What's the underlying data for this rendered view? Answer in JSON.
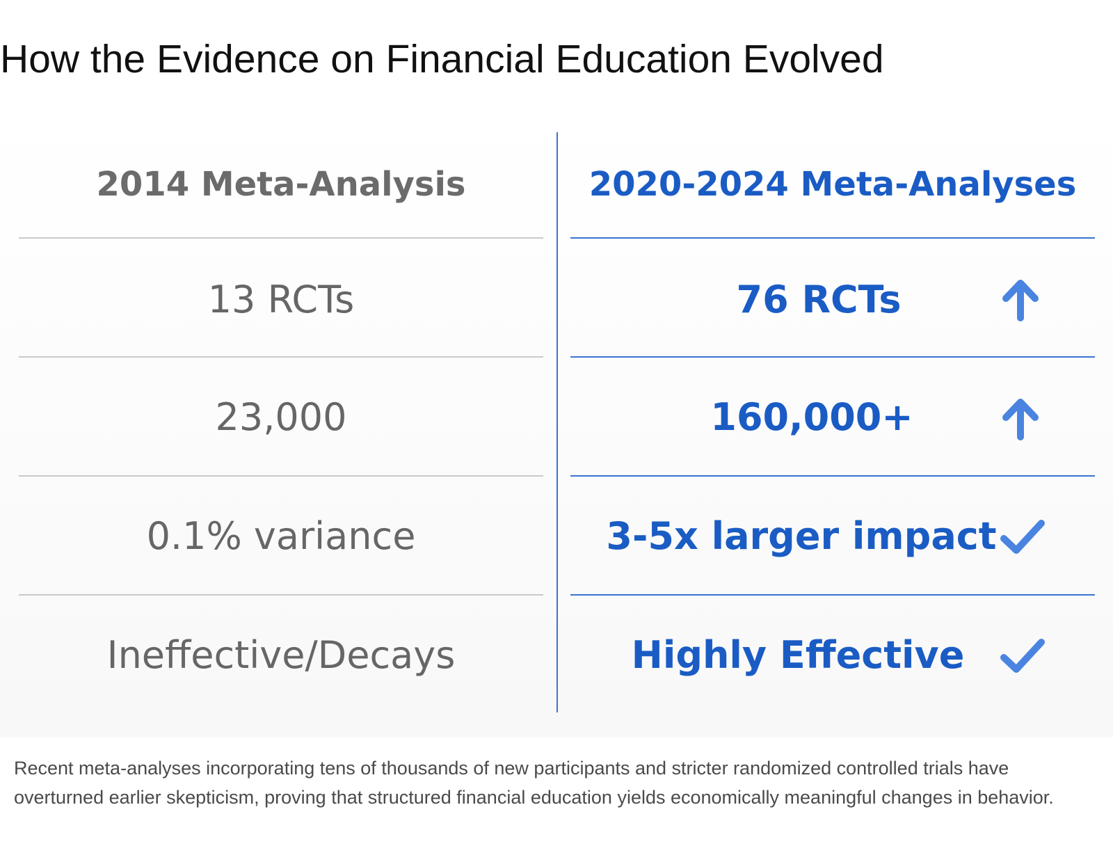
{
  "title": "How the Evidence on Financial Education Evolved",
  "chart_data": {
    "type": "table",
    "columns": [
      {
        "header": "2014 Meta-Analysis",
        "rows": [
          "13 RCTs",
          "23,000",
          "0.1% variance",
          "Ineffective/Decays"
        ]
      },
      {
        "header": "2020-2024 Meta-Analyses",
        "rows": [
          "76 RCTs",
          "160,000+",
          "3-5x larger impact",
          "Highly Effective"
        ],
        "row_icons": [
          "arrow-up-icon",
          "arrow-up-icon",
          "check-icon",
          "check-icon"
        ]
      }
    ]
  },
  "colors": {
    "accent_blue": "#1a5cc4",
    "icon_blue": "#4a84e0",
    "muted_gray": "#666666",
    "divider_gray": "#c9c9c9",
    "divider_blue": "#3a73cf"
  },
  "footnote": "Recent meta-analyses incorporating tens of thousands of new participants and stricter randomized controlled trials have overturned earlier skepticism, proving that structured financial education yields economically meaningful changes in behavior."
}
